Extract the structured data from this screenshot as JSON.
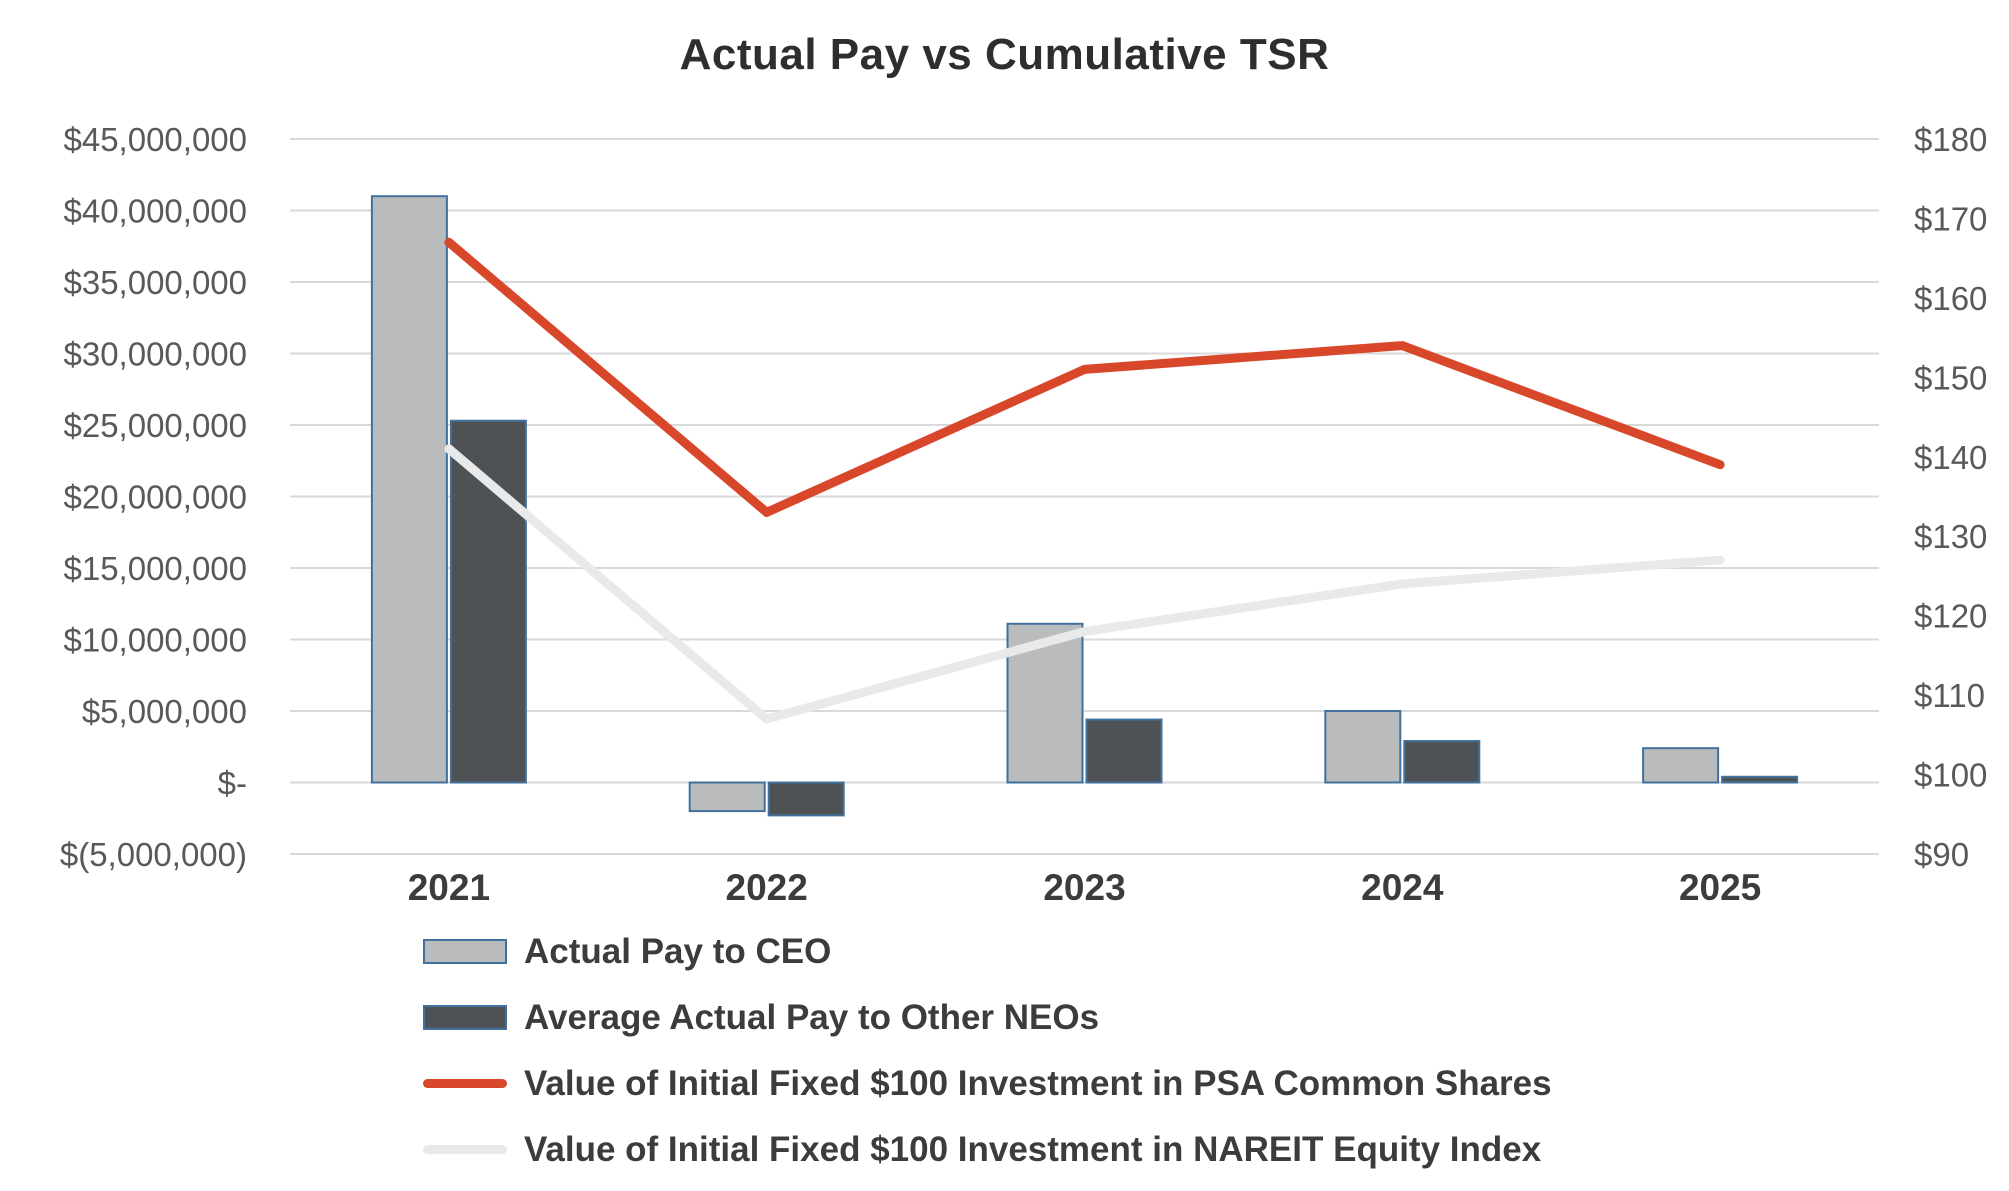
{
  "chart_data": {
    "type": "combo",
    "title": "Actual Pay vs Cumulative TSR",
    "categories": [
      "2021",
      "2022",
      "2023",
      "2024",
      "2025"
    ],
    "bar_series": [
      {
        "name": "Actual Pay to CEO",
        "axis": "left",
        "color": "#b9bbbd",
        "border_color": "#41719c",
        "values": [
          41000000,
          -2000000,
          11100000,
          5000000,
          2400000
        ]
      },
      {
        "name": "Average Actual Pay to Other NEOs",
        "axis": "left",
        "color": "#4f5254",
        "border_color": "#41719c",
        "values": [
          25300000,
          -2300000,
          4400000,
          2900000,
          400000
        ]
      }
    ],
    "line_series": [
      {
        "name": "Value of Initial Fixed $100 Investment in PSA Common Shares",
        "axis": "right",
        "color": "#d9472b",
        "values": [
          167,
          133,
          151,
          154,
          139
        ]
      },
      {
        "name": "Value of Initial Fixed $100 Investment in NAREIT Equity Index",
        "axis": "right",
        "color": "#e8e9ea",
        "values": [
          141,
          107,
          118,
          124,
          127
        ]
      }
    ],
    "left_axis": {
      "min": -5000000,
      "max": 45000000,
      "tick_step": 5000000,
      "tick_labels": [
        "$45,000,000",
        "$40,000,000",
        "$35,000,000",
        "$30,000,000",
        "$25,000,000",
        "$20,000,000",
        "$15,000,000",
        "$10,000,000",
        "$5,000,000",
        "$-",
        "$(5,000,000)"
      ]
    },
    "right_axis": {
      "min": 90,
      "max": 180,
      "tick_step": 10,
      "tick_labels": [
        "$180",
        "$170",
        "$160",
        "$150",
        "$140",
        "$130",
        "$120",
        "$110",
        "$100",
        "$90"
      ]
    },
    "grid": true,
    "gridline_color": "#d9d9d9",
    "legend_position": "bottom-left"
  }
}
